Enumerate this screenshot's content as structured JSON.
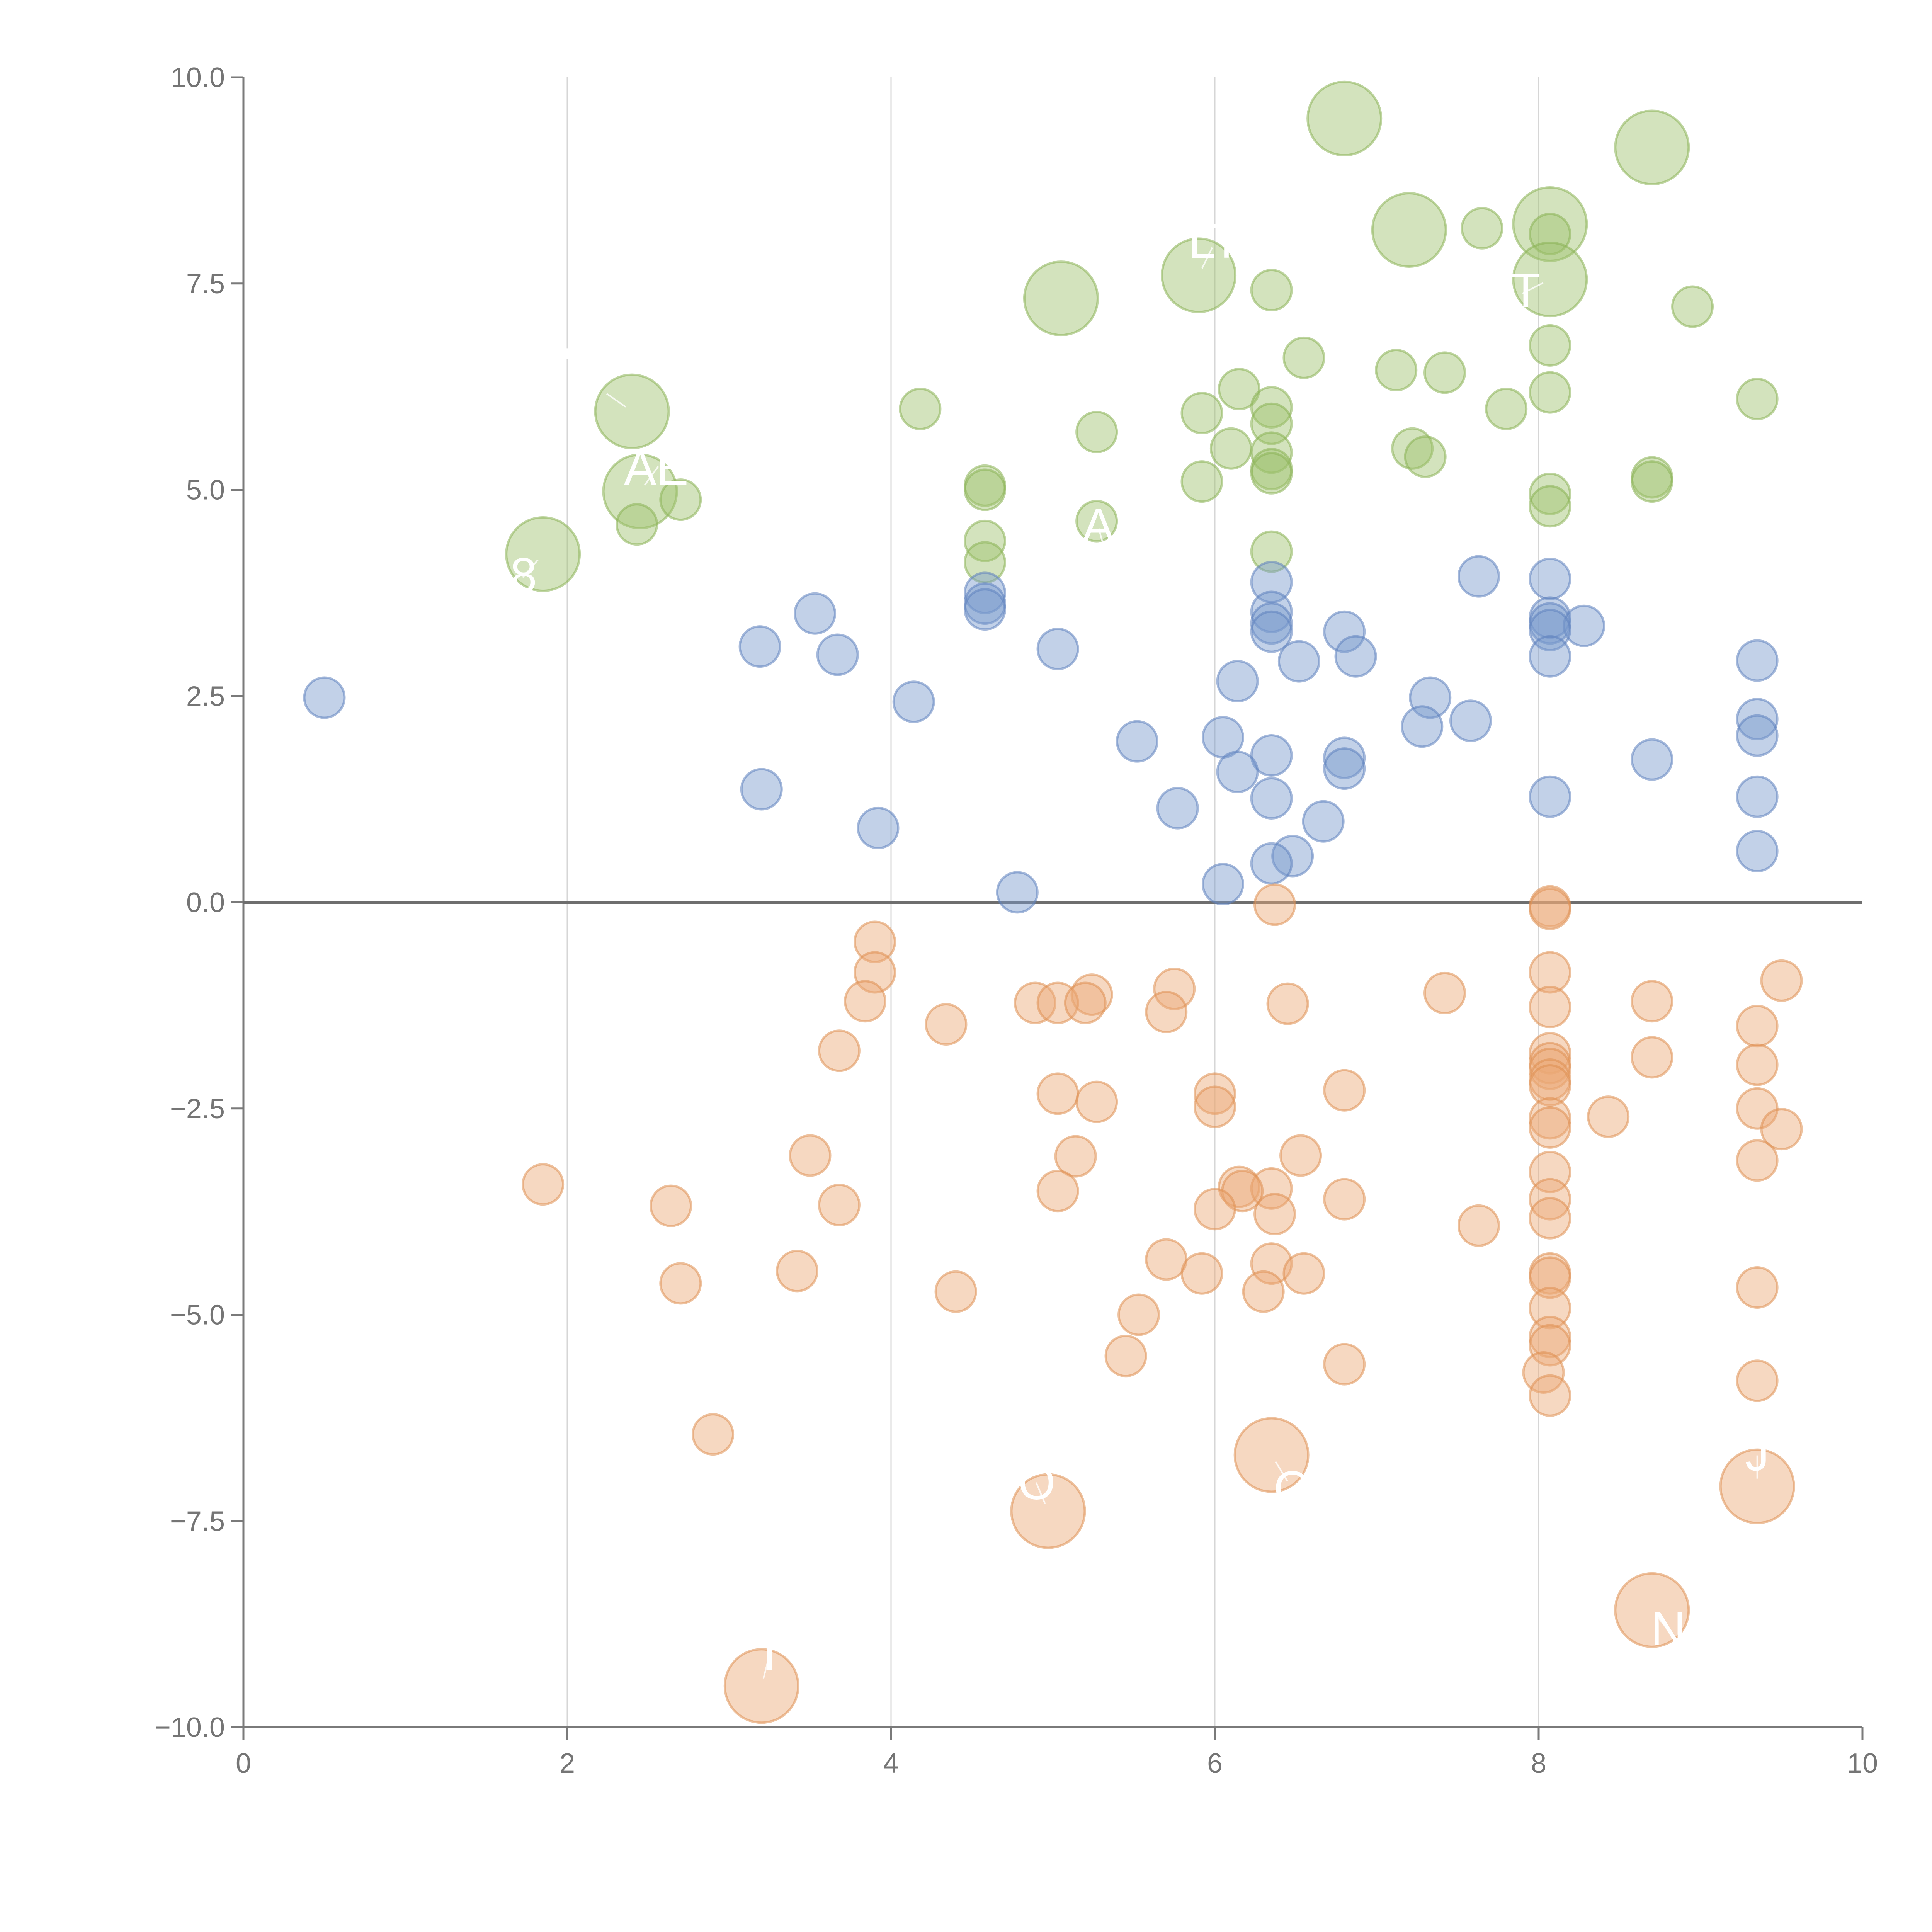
{
  "chart_data": {
    "type": "scatter",
    "title": "",
    "xlabel": "",
    "ylabel": "",
    "xlim": [
      0,
      10
    ],
    "ylim": [
      -10,
      10
    ],
    "x_ticks": [
      0,
      2,
      4,
      6,
      8,
      10
    ],
    "x_tick_labels": [
      "0",
      "2",
      "4",
      "6",
      "8",
      "10"
    ],
    "y_ticks": [
      10,
      7.5,
      5,
      2.5,
      0,
      -2.5,
      -5,
      -7.5,
      -10
    ],
    "y_tick_labels": [
      "10.0",
      "7.5",
      "5.0",
      "2.5",
      "0.0",
      "−2.5",
      "−5.0",
      "−7.5",
      "−10.0"
    ],
    "grid": "vertical",
    "zero_line": true,
    "legend": "none",
    "series": [
      {
        "name": "green",
        "color": "#9DC26D",
        "stroke": "#8AB256",
        "points": [
          [
            6.8,
            9.5,
            3
          ],
          [
            8.7,
            9.15,
            3
          ],
          [
            7.2,
            8.15,
            3
          ],
          [
            8.07,
            8.22,
            3
          ],
          [
            7.65,
            8.17,
            1
          ],
          [
            8.07,
            8.1,
            1
          ],
          [
            5.9,
            7.6,
            3
          ],
          [
            8.07,
            7.55,
            3
          ],
          [
            5.05,
            7.32,
            3
          ],
          [
            6.35,
            7.42,
            1
          ],
          [
            8.95,
            7.22,
            1
          ],
          [
            8.07,
            6.75,
            1
          ],
          [
            6.55,
            6.6,
            1
          ],
          [
            7.12,
            6.45,
            1
          ],
          [
            7.42,
            6.42,
            1
          ],
          [
            6.15,
            6.22,
            1
          ],
          [
            8.07,
            6.18,
            1
          ],
          [
            9.35,
            6.1,
            1
          ],
          [
            2.4,
            5.95,
            3
          ],
          [
            4.18,
            5.98,
            1
          ],
          [
            6.35,
            6.0,
            1
          ],
          [
            5.92,
            5.93,
            1
          ],
          [
            7.8,
            5.98,
            1
          ],
          [
            6.35,
            5.8,
            1
          ],
          [
            5.27,
            5.7,
            1
          ],
          [
            6.1,
            5.5,
            1
          ],
          [
            7.22,
            5.5,
            1
          ],
          [
            7.3,
            5.4,
            1
          ],
          [
            6.35,
            5.45,
            1
          ],
          [
            6.35,
            5.25,
            1
          ],
          [
            6.35,
            5.2,
            1
          ],
          [
            8.7,
            5.15,
            1
          ],
          [
            8.7,
            5.1,
            1
          ],
          [
            4.58,
            5.05,
            1
          ],
          [
            4.58,
            5.0,
            1
          ],
          [
            5.92,
            5.1,
            1
          ],
          [
            2.45,
            4.98,
            3
          ],
          [
            8.07,
            4.95,
            1
          ],
          [
            2.7,
            4.88,
            1
          ],
          [
            8.07,
            4.8,
            1
          ],
          [
            5.27,
            4.62,
            1
          ],
          [
            2.43,
            4.58,
            1
          ],
          [
            4.58,
            4.38,
            1
          ],
          [
            6.35,
            4.25,
            1
          ],
          [
            1.85,
            4.22,
            3
          ],
          [
            4.58,
            4.12,
            1
          ]
        ]
      },
      {
        "name": "blue",
        "color": "#7898CC",
        "stroke": "#5E82BE",
        "points": [
          [
            7.63,
            3.95,
            1
          ],
          [
            8.07,
            3.92,
            1
          ],
          [
            6.35,
            3.88,
            1
          ],
          [
            4.58,
            3.75,
            1
          ],
          [
            4.58,
            3.62,
            1
          ],
          [
            4.58,
            3.55,
            1
          ],
          [
            3.53,
            3.5,
            1
          ],
          [
            6.35,
            3.52,
            1
          ],
          [
            8.07,
            3.45,
            1
          ],
          [
            8.07,
            3.38,
            1
          ],
          [
            6.35,
            3.38,
            1
          ],
          [
            8.28,
            3.35,
            1
          ],
          [
            8.07,
            3.3,
            1
          ],
          [
            6.35,
            3.28,
            1
          ],
          [
            6.8,
            3.28,
            1
          ],
          [
            3.19,
            3.1,
            1
          ],
          [
            5.03,
            3.07,
            1
          ],
          [
            3.67,
            3.0,
            1
          ],
          [
            6.87,
            2.98,
            1
          ],
          [
            8.07,
            2.98,
            1
          ],
          [
            9.35,
            2.93,
            1
          ],
          [
            6.52,
            2.92,
            1
          ],
          [
            6.14,
            2.68,
            1
          ],
          [
            7.33,
            2.48,
            1
          ],
          [
            0.5,
            2.48,
            1
          ],
          [
            4.14,
            2.43,
            1
          ],
          [
            9.35,
            2.22,
            1
          ],
          [
            7.58,
            2.2,
            1
          ],
          [
            7.28,
            2.13,
            1
          ],
          [
            9.35,
            2.02,
            1
          ],
          [
            6.05,
            2.0,
            1
          ],
          [
            5.52,
            1.95,
            1
          ],
          [
            6.35,
            1.78,
            1
          ],
          [
            6.8,
            1.75,
            1
          ],
          [
            8.7,
            1.73,
            1
          ],
          [
            6.8,
            1.62,
            1
          ],
          [
            6.14,
            1.58,
            1
          ],
          [
            3.2,
            1.37,
            1
          ],
          [
            8.07,
            1.28,
            1
          ],
          [
            9.35,
            1.28,
            1
          ],
          [
            6.35,
            1.26,
            1
          ],
          [
            5.77,
            1.14,
            1
          ],
          [
            6.67,
            0.98,
            1
          ],
          [
            3.92,
            0.9,
            1
          ],
          [
            9.35,
            0.62,
            1
          ],
          [
            6.48,
            0.56,
            1
          ],
          [
            6.35,
            0.47,
            1
          ],
          [
            6.05,
            0.22,
            1
          ],
          [
            4.78,
            0.12,
            1
          ]
        ]
      },
      {
        "name": "orange",
        "color": "#EBA875",
        "stroke": "#DE8F52",
        "points": [
          [
            8.07,
            -0.05,
            1
          ],
          [
            8.07,
            -0.08,
            1
          ],
          [
            6.37,
            -0.03,
            1
          ],
          [
            3.9,
            -0.48,
            1
          ],
          [
            3.9,
            -0.85,
            1
          ],
          [
            8.07,
            -0.85,
            1
          ],
          [
            9.5,
            -0.95,
            1
          ],
          [
            5.75,
            -1.05,
            1
          ],
          [
            7.42,
            -1.1,
            1
          ],
          [
            5.24,
            -1.12,
            1
          ],
          [
            3.84,
            -1.2,
            1
          ],
          [
            4.89,
            -1.22,
            1
          ],
          [
            5.03,
            -1.22,
            1
          ],
          [
            8.7,
            -1.2,
            1
          ],
          [
            5.2,
            -1.22,
            1
          ],
          [
            6.45,
            -1.23,
            1
          ],
          [
            8.07,
            -1.27,
            1
          ],
          [
            5.7,
            -1.33,
            1
          ],
          [
            4.34,
            -1.48,
            1
          ],
          [
            9.35,
            -1.5,
            1
          ],
          [
            3.68,
            -1.8,
            1
          ],
          [
            8.07,
            -1.83,
            1
          ],
          [
            8.7,
            -1.88,
            1
          ],
          [
            8.07,
            -1.95,
            1
          ],
          [
            9.35,
            -1.97,
            1
          ],
          [
            8.07,
            -2.02,
            1
          ],
          [
            8.07,
            -2.15,
            1
          ],
          [
            8.07,
            -2.22,
            1
          ],
          [
            6.8,
            -2.28,
            1
          ],
          [
            6.0,
            -2.32,
            1
          ],
          [
            5.03,
            -2.32,
            1
          ],
          [
            5.27,
            -2.42,
            1
          ],
          [
            6.0,
            -2.48,
            1
          ],
          [
            9.35,
            -2.5,
            1
          ],
          [
            8.43,
            -2.6,
            1
          ],
          [
            8.07,
            -2.62,
            1
          ],
          [
            8.07,
            -2.73,
            1
          ],
          [
            9.5,
            -2.75,
            1
          ],
          [
            3.5,
            -3.07,
            1
          ],
          [
            6.53,
            -3.07,
            1
          ],
          [
            5.14,
            -3.08,
            1
          ],
          [
            9.35,
            -3.13,
            1
          ],
          [
            8.07,
            -3.27,
            1
          ],
          [
            1.85,
            -3.42,
            1
          ],
          [
            6.15,
            -3.45,
            1
          ],
          [
            6.35,
            -3.47,
            1
          ],
          [
            6.17,
            -3.5,
            1
          ],
          [
            5.03,
            -3.5,
            1
          ],
          [
            8.07,
            -3.6,
            1
          ],
          [
            6.8,
            -3.6,
            1
          ],
          [
            2.64,
            -3.68,
            1
          ],
          [
            3.68,
            -3.67,
            1
          ],
          [
            6.0,
            -3.72,
            1
          ],
          [
            6.37,
            -3.78,
            1
          ],
          [
            8.07,
            -3.83,
            1
          ],
          [
            7.63,
            -3.92,
            1
          ],
          [
            5.7,
            -4.33,
            1
          ],
          [
            6.35,
            -4.38,
            1
          ],
          [
            3.42,
            -4.47,
            1
          ],
          [
            8.07,
            -4.5,
            1
          ],
          [
            8.07,
            -4.55,
            1
          ],
          [
            5.92,
            -4.5,
            1
          ],
          [
            6.55,
            -4.5,
            1
          ],
          [
            2.7,
            -4.62,
            1
          ],
          [
            9.35,
            -4.67,
            1
          ],
          [
            4.4,
            -4.72,
            1
          ],
          [
            6.3,
            -4.72,
            1
          ],
          [
            8.07,
            -4.92,
            1
          ],
          [
            5.53,
            -5.0,
            1
          ],
          [
            8.07,
            -5.27,
            1
          ],
          [
            8.07,
            -5.37,
            1
          ],
          [
            5.45,
            -5.5,
            1
          ],
          [
            6.8,
            -5.6,
            1
          ],
          [
            8.03,
            -5.7,
            1
          ],
          [
            9.35,
            -5.8,
            1
          ],
          [
            8.07,
            -5.98,
            1
          ],
          [
            2.9,
            -6.45,
            1
          ],
          [
            6.35,
            -6.7,
            3
          ],
          [
            9.35,
            -7.08,
            3
          ],
          [
            4.97,
            -7.38,
            3
          ],
          [
            8.7,
            -8.58,
            3
          ],
          [
            3.2,
            -9.5,
            3
          ]
        ]
      }
    ],
    "annotations": [
      {
        "text": "AE",
        "x": 2.45,
        "y": 4.98,
        "tx": 2.55,
        "ty": 5.25
      },
      {
        "text": "A",
        "x": 5.27,
        "y": 4.62,
        "tx": 5.28,
        "ty": 4.55
      },
      {
        "text": "8",
        "x": 1.85,
        "y": 4.22,
        "tx": 1.73,
        "ty": 3.95
      },
      {
        "text": "LT",
        "x": 5.9,
        "y": 7.6,
        "tx": 6.0,
        "ty": 8.0
      },
      {
        "text": "T",
        "x": 8.07,
        "y": 7.55,
        "tx": 7.92,
        "ty": 7.4
      },
      {
        "text": "'",
        "x": 2.4,
        "y": 5.95,
        "tx": 2.0,
        "ty": 6.5
      },
      {
        "text": "O",
        "x": 4.97,
        "y": -7.38,
        "tx": 4.9,
        "ty": -7.05
      },
      {
        "text": "O",
        "x": 6.35,
        "y": -6.7,
        "tx": 6.48,
        "ty": -7.12
      },
      {
        "text": "J",
        "x": 9.35,
        "y": -7.08,
        "tx": 9.35,
        "ty": -6.7
      },
      {
        "text": "N",
        "x": 8.7,
        "y": -8.58,
        "tx": 8.8,
        "ty": -8.82
      },
      {
        "text": "I",
        "x": 3.2,
        "y": -9.5,
        "tx": 3.25,
        "ty": -9.12
      }
    ]
  }
}
